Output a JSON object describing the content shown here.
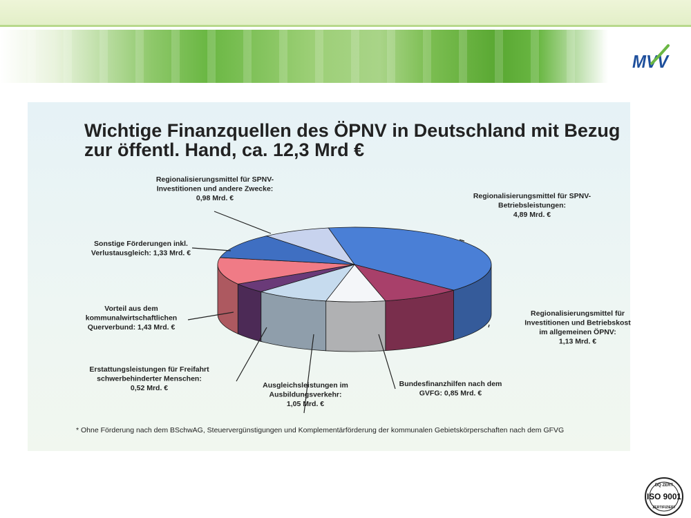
{
  "header": {
    "logo_text": "MVV",
    "brand_colors": {
      "green": "#6ab743",
      "blue": "#1e4f9c"
    }
  },
  "chart_data": {
    "type": "pie",
    "title": "Wichtige Finanzquellen des ÖPNV in Deutschland mit Bezug zur öffentl. Hand, ca. 12,3 Mrd €",
    "unit": "Mrd. €",
    "slices": [
      {
        "label": "Regionalisierungsmittel für SPNV-Betriebsleistungen: 4,89 Mrd. €",
        "value": 4.89,
        "color": "#4a7fd6"
      },
      {
        "label": "Regionalisierungsmittel für Investitionen und Betriebskosten im allgemeinen ÖPNV: 1,13 Mrd. €",
        "value": 1.13,
        "color": "#a8406a"
      },
      {
        "label": "Bundesfinanzhilfen nach dem GVFG: 0,85 Mrd. €",
        "value": 0.85,
        "color": "#f4f6f9"
      },
      {
        "label": "Ausgleichsleistungen im Ausbildungsverkehr: 1,05 Mrd. €",
        "value": 1.05,
        "color": "#c6dbee"
      },
      {
        "label": "Erstattungsleistungen für Freifahrt schwerbehinderter Menschen: 0,52 Mrd. €",
        "value": 0.52,
        "color": "#6a3a78"
      },
      {
        "label": "Vorteil aus dem kommunalwirtschaftlichen Querverbund: 1,43 Mrd. €",
        "value": 1.43,
        "color": "#f07b86"
      },
      {
        "label": "Sonstige Förderungen inkl. Verlustausgleich: 1,33 Mrd. €",
        "value": 1.33,
        "color": "#3f6fc2"
      },
      {
        "label": "Regionalisierungsmittel für SPNV-Investitionen und andere Zwecke: 0,98 Mrd. €",
        "value": 0.98,
        "color": "#c8d3ee"
      }
    ],
    "labels": [
      {
        "lines": [
          "Regionalisierungsmittel für SPNV-",
          "Betriebsleistungen:",
          "4,89 Mrd. €"
        ]
      },
      {
        "lines": [
          "Regionalisierungsmittel für",
          "Investitionen und Betriebskost",
          "im allgemeinen ÖPNV:",
          "1,13 Mrd. €"
        ]
      },
      {
        "lines": [
          "Bundesfinanzhilfen nach dem",
          "GVFG: 0,85 Mrd. €"
        ]
      },
      {
        "lines": [
          "Ausgleichsleistungen im",
          "Ausbildungsverkehr:",
          "1,05 Mrd. €"
        ]
      },
      {
        "lines": [
          "Erstattungsleistungen für Freifahrt",
          "schwerbehinderter Menschen:",
          "0,52 Mrd. €"
        ]
      },
      {
        "lines": [
          "Vorteil aus dem",
          "kommunalwirtschaftlichen",
          "Querverbund: 1,43 Mrd. €"
        ]
      },
      {
        "lines": [
          "Sonstige Förderungen inkl.",
          "Verlustausgleich: 1,33 Mrd. €"
        ]
      },
      {
        "lines": [
          "Regionalisierungsmittel für SPNV-",
          "Investitionen und andere Zwecke:",
          "0,98 Mrd. €"
        ]
      }
    ],
    "legend": "none",
    "grid": false
  },
  "footnote": "* Ohne Förderung nach dem BSchwAG, Steuervergünstigungen und Komplementärförderung der kommunalen Gebietskörperschaften nach dem GFVG",
  "iso_badge": {
    "top": "DQ ZERT",
    "main": "ISO 9001",
    "bottom": "ZERTIFIZIERT"
  }
}
